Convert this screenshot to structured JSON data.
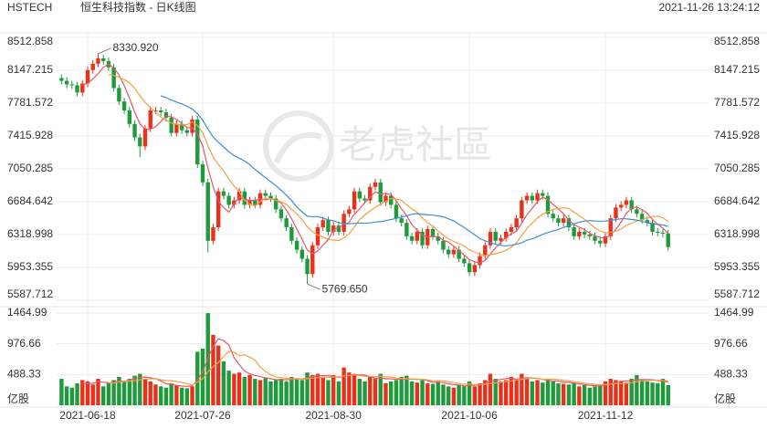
{
  "chart_data": {
    "type": "candlestick",
    "symbol": "HSTECH",
    "title": "恒生科技指数 - 日K线图",
    "timestamp": "2021-11-26 13:24:12",
    "watermark": "老虎社區",
    "colors": {
      "up": "#e8311a",
      "down": "#1f9a3c"
    },
    "grid": true,
    "categories": [
      null,
      null,
      null,
      null,
      null,
      "2021-06-18",
      null,
      null,
      null,
      null,
      null,
      null,
      null,
      null,
      null,
      null,
      null,
      null,
      null,
      null,
      null,
      null,
      null,
      null,
      null,
      null,
      null,
      "2021-07-26",
      null,
      null,
      null,
      null,
      null,
      null,
      null,
      null,
      null,
      null,
      null,
      null,
      null,
      null,
      null,
      null,
      null,
      null,
      null,
      null,
      null,
      null,
      null,
      null,
      "2021-08-30",
      null,
      null,
      null,
      null,
      null,
      null,
      null,
      null,
      null,
      null,
      null,
      null,
      null,
      null,
      null,
      null,
      null,
      null,
      null,
      null,
      null,
      null,
      null,
      null,
      null,
      "2021-10-06",
      null,
      null,
      null,
      null,
      null,
      null,
      null,
      null,
      null,
      null,
      null,
      null,
      null,
      null,
      null,
      null,
      null,
      null,
      null,
      null,
      null,
      null,
      null,
      null,
      null,
      "2021-11-12",
      null,
      null,
      null,
      null,
      null,
      null,
      null,
      null,
      null,
      null,
      null,
      null
    ],
    "open": [
      8060,
      8030,
      7990,
      7980,
      7900,
      8000,
      8150,
      8220,
      8280,
      8250,
      8180,
      7950,
      7800,
      7700,
      7550,
      7400,
      7300,
      7500,
      7700,
      7700,
      7680,
      7620,
      7450,
      7550,
      7480,
      7450,
      7600,
      7100,
      6900,
      6250,
      6400,
      6800,
      6750,
      6650,
      6700,
      6800,
      6650,
      6700,
      6650,
      6780,
      6750,
      6720,
      6600,
      6500,
      6400,
      6250,
      6150,
      6050,
      5880,
      6200,
      6400,
      6480,
      6350,
      6420,
      6350,
      6550,
      6600,
      6800,
      6720,
      6700,
      6850,
      6900,
      6680,
      6750,
      6650,
      6500,
      6450,
      6300,
      6250,
      6350,
      6200,
      6380,
      6300,
      6250,
      6150,
      6100,
      6150,
      6050,
      6000,
      5900,
      5980,
      6080,
      6200,
      6350,
      6250,
      6280,
      6350,
      6400,
      6500,
      6700,
      6750,
      6700,
      6780,
      6750,
      6550,
      6500,
      6450,
      6500,
      6400,
      6300,
      6350,
      6320,
      6300,
      6250,
      6220,
      6300,
      6500,
      6620,
      6650,
      6700,
      6600,
      6550,
      6480,
      6450,
      6350,
      6340,
      6330
    ],
    "high": [
      8100,
      8070,
      8030,
      8020,
      8040,
      8190,
      8260,
      8330.92,
      8320,
      8290,
      8220,
      7990,
      7840,
      7740,
      7590,
      7440,
      7540,
      7740,
      7740,
      7740,
      7720,
      7660,
      7590,
      7590,
      7520,
      7640,
      7640,
      7140,
      6940,
      6440,
      6840,
      6840,
      6790,
      6740,
      6840,
      6840,
      6740,
      6740,
      6820,
      6820,
      6790,
      6760,
      6640,
      6540,
      6440,
      6290,
      6190,
      6090,
      6240,
      6440,
      6520,
      6520,
      6460,
      6460,
      6590,
      6640,
      6840,
      6840,
      6760,
      6890,
      6940,
      6940,
      6790,
      6790,
      6690,
      6540,
      6490,
      6340,
      6390,
      6390,
      6420,
      6420,
      6340,
      6290,
      6190,
      6190,
      6190,
      6090,
      6040,
      6020,
      6120,
      6240,
      6390,
      6390,
      6320,
      6390,
      6440,
      6540,
      6740,
      6790,
      6790,
      6820,
      6820,
      6790,
      6590,
      6540,
      6540,
      6540,
      6440,
      6390,
      6390,
      6360,
      6340,
      6290,
      6340,
      6540,
      6660,
      6690,
      6740,
      6740,
      6640,
      6590,
      6520,
      6490,
      6390,
      6380,
      6370
    ],
    "low": [
      7990,
      7950,
      7940,
      7860,
      7860,
      7960,
      8110,
      8180,
      8210,
      8140,
      7910,
      7760,
      7660,
      7510,
      7360,
      7180,
      7260,
      7460,
      7660,
      7640,
      7580,
      7410,
      7410,
      7440,
      7410,
      7410,
      7060,
      6860,
      6120,
      6210,
      6360,
      6710,
      6610,
      6610,
      6660,
      6610,
      6610,
      6610,
      6610,
      6710,
      6680,
      6560,
      6460,
      6360,
      6210,
      6110,
      6010,
      5769.65,
      5840,
      6160,
      6360,
      6310,
      6310,
      6310,
      6310,
      6510,
      6560,
      6680,
      6660,
      6660,
      6810,
      6640,
      6640,
      6610,
      6460,
      6410,
      6260,
      6210,
      6210,
      6160,
      6160,
      6260,
      6210,
      6110,
      6060,
      6060,
      6010,
      5960,
      5860,
      5860,
      5940,
      6040,
      6160,
      6210,
      6210,
      6240,
      6310,
      6360,
      6460,
      6660,
      6660,
      6660,
      6710,
      6510,
      6460,
      6410,
      6410,
      6360,
      6260,
      6260,
      6280,
      6260,
      6210,
      6180,
      6180,
      6260,
      6460,
      6580,
      6610,
      6560,
      6510,
      6440,
      6410,
      6310,
      6300,
      6290,
      6140
    ],
    "close": [
      8030,
      7990,
      7980,
      7900,
      8000,
      8150,
      8220,
      8280,
      8250,
      8180,
      7950,
      7800,
      7700,
      7550,
      7400,
      7300,
      7500,
      7700,
      7700,
      7680,
      7620,
      7450,
      7550,
      7480,
      7450,
      7600,
      7100,
      6900,
      6250,
      6400,
      6800,
      6750,
      6650,
      6700,
      6800,
      6650,
      6700,
      6650,
      6780,
      6750,
      6720,
      6600,
      6500,
      6400,
      6250,
      6150,
      6050,
      5880,
      6200,
      6400,
      6480,
      6350,
      6420,
      6350,
      6550,
      6600,
      6800,
      6720,
      6700,
      6850,
      6900,
      6680,
      6750,
      6650,
      6500,
      6450,
      6300,
      6250,
      6350,
      6200,
      6380,
      6300,
      6250,
      6150,
      6100,
      6150,
      6050,
      6000,
      5900,
      5980,
      6080,
      6200,
      6350,
      6250,
      6280,
      6350,
      6400,
      6500,
      6700,
      6750,
      6700,
      6780,
      6750,
      6550,
      6500,
      6450,
      6500,
      6400,
      6300,
      6350,
      6320,
      6300,
      6250,
      6220,
      6300,
      6500,
      6620,
      6650,
      6700,
      6600,
      6550,
      6480,
      6450,
      6350,
      6340,
      6330,
      6180
    ],
    "ylim": [
      5587.712,
      8512.858
    ],
    "yticks": [
      5587.712,
      5953.355,
      6318.998,
      6684.642,
      7050.285,
      7415.928,
      7781.572,
      8147.215,
      8512.858
    ],
    "ma_lines": [
      {
        "color": "#e8566a",
        "values": [
          null,
          null,
          null,
          null,
          7980,
          8004,
          8050,
          8110,
          8180,
          8216,
          8176,
          8092,
          7976,
          7836,
          7680,
          7550,
          7490,
          7490,
          7520,
          7576,
          7640,
          7630,
          7600,
          7556,
          7510,
          7506,
          7436,
          7306,
          7060,
          6850,
          6690,
          6620,
          6570,
          6660,
          6740,
          6710,
          6700,
          6700,
          6716,
          6706,
          6720,
          6700,
          6670,
          6594,
          6494,
          6380,
          6270,
          6146,
          6106,
          6136,
          6202,
          6262,
          6370,
          6400,
          6430,
          6454,
          6544,
          6604,
          6674,
          6734,
          6794,
          6770,
          6776,
          6766,
          6696,
          6606,
          6530,
          6430,
          6370,
          6310,
          6296,
          6296,
          6296,
          6256,
          6236,
          6190,
          6140,
          6090,
          6040,
          6016,
          6002,
          6032,
          6102,
          6172,
          6232,
          6286,
          6326,
          6356,
          6446,
          6540,
          6610,
          6686,
          6736,
          6706,
          6656,
          6606,
          6550,
          6480,
          6430,
          6400,
          6374,
          6334,
          6304,
          6288,
          6278,
          6314,
          6378,
          6458,
          6554,
          6614,
          6624,
          6596,
          6556,
          6486,
          6434,
          6390,
          6330
        ]
      },
      {
        "color": "#f4a043",
        "values": [
          null,
          null,
          null,
          null,
          null,
          null,
          null,
          null,
          null,
          8098,
          8090,
          8071,
          8043,
          8008,
          7948,
          7863,
          7791,
          7733,
          7678,
          7628,
          7595,
          7560,
          7545,
          7538,
          7543,
          7573,
          7533,
          7453,
          7308,
          7180,
          7098,
          7028,
          6938,
          6860,
          6795,
          6700,
          6660,
          6635,
          6688,
          6723,
          6715,
          6700,
          6685,
          6655,
          6600,
          6550,
          6485,
          6408,
          6350,
          6315,
          6291,
          6266,
          6258,
          6253,
          6283,
          6328,
          6403,
          6487,
          6537,
          6582,
          6624,
          6657,
          6690,
          6720,
          6715,
          6700,
          6650,
          6603,
          6568,
          6503,
          6451,
          6413,
          6363,
          6313,
          6273,
          6243,
          6218,
          6193,
          6148,
          6126,
          6096,
          6086,
          6096,
          6106,
          6124,
          6144,
          6179,
          6229,
          6309,
          6386,
          6448,
          6506,
          6546,
          6576,
          6598,
          6608,
          6618,
          6608,
          6568,
          6528,
          6490,
          6442,
          6392,
          6359,
          6339,
          6344,
          6356,
          6381,
          6421,
          6446,
          6469,
          6487,
          6507,
          6520,
          6524,
          6507,
          6463
        ]
      },
      {
        "color": "#3b8fd8",
        "values": [
          null,
          null,
          null,
          null,
          null,
          null,
          null,
          null,
          null,
          null,
          null,
          null,
          null,
          null,
          null,
          null,
          null,
          null,
          null,
          7863,
          7843,
          7816,
          7794,
          7773,
          7746,
          7718,
          7662,
          7593,
          7493,
          7404,
          7347,
          7294,
          7242,
          7199,
          7169,
          7137,
          7097,
          7044,
          6998,
          6952,
          6907,
          6864,
          6812,
          6758,
          6698,
          6625,
          6573,
          6522,
          6519,
          6519,
          6503,
          6483,
          6472,
          6454,
          6442,
          6439,
          6444,
          6448,
          6444,
          6449,
          6458,
          6462,
          6474,
          6487,
          6499,
          6514,
          6527,
          6545,
          6553,
          6543,
          6538,
          6535,
          6527,
          6517,
          6494,
          6472,
          6434,
          6398,
          6358,
          6315,
          6274,
          6250,
          6230,
          6210,
          6199,
          6194,
          6199,
          6211,
          6229,
          6256,
          6272,
          6296,
          6321,
          6341,
          6361,
          6376,
          6399,
          6419,
          6439,
          6457,
          6469,
          6474,
          6469,
          6468,
          6469,
          6476,
          6487,
          6495,
          6495,
          6487,
          6480,
          6465,
          6450,
          6440,
          6432,
          6426,
          6410
        ]
      }
    ],
    "annotations": [
      {
        "label": "8330.920",
        "value": 8330.92
      },
      {
        "label": "5769.650",
        "value": 5769.65
      }
    ],
    "volume": {
      "values": [
        420,
        300,
        280,
        350,
        400,
        380,
        330,
        420,
        300,
        360,
        400,
        450,
        380,
        420,
        470,
        500,
        420,
        380,
        330,
        300,
        280,
        350,
        320,
        280,
        270,
        300,
        850,
        900,
        1464.99,
        1120,
        950,
        700,
        550,
        500,
        520,
        450,
        480,
        420,
        400,
        430,
        380,
        400,
        420,
        380,
        450,
        430,
        400,
        520,
        480,
        500,
        450,
        400,
        480,
        380,
        600,
        520,
        480,
        420,
        380,
        450,
        420,
        500,
        350,
        380,
        400,
        450,
        470,
        380,
        360,
        400,
        350,
        340,
        380,
        330,
        300,
        280,
        320,
        300,
        380,
        300,
        350,
        400,
        500,
        420,
        380,
        400,
        450,
        420,
        500,
        420,
        380,
        400,
        360,
        420,
        380,
        350,
        340,
        330,
        360,
        300,
        320,
        280,
        300,
        330,
        380,
        420,
        400,
        380,
        360,
        420,
        480,
        400,
        380,
        360,
        350,
        420,
        320
      ],
      "ylim": [
        0,
        1464.99
      ],
      "yticks": [
        {
          "value": 0,
          "label": "亿股"
        },
        488.33,
        976.66,
        1464.99
      ],
      "ma_lines": [
        {
          "color": "#e8566a",
          "values": [
            null,
            null,
            null,
            null,
            350,
            342,
            348,
            376,
            366,
            358,
            362,
            386,
            378,
            402,
            424,
            444,
            448,
            438,
            420,
            386,
            342,
            332,
            316,
            306,
            300,
            304,
            404,
            524,
            757,
            927,
            1057,
            1027,
            957,
            757,
            644,
            544,
            500,
            474,
            454,
            436,
            422,
            406,
            406,
            406,
            406,
            416,
            416,
            436,
            456,
            470,
            470,
            470,
            462,
            442,
            462,
            476,
            492,
            480,
            480,
            454,
            430,
            434,
            420,
            420,
            410,
            416,
            410,
            416,
            412,
            412,
            392,
            366,
            366,
            360,
            340,
            326,
            322,
            306,
            316,
            316,
            330,
            346,
            386,
            394,
            410,
            424,
            430,
            414,
            430,
            438,
            434,
            428,
            412,
            396,
            388,
            382,
            370,
            364,
            352,
            340,
            330,
            318,
            312,
            306,
            322,
            342,
            366,
            382,
            388,
            392,
            408,
            408,
            408,
            404,
            394,
            382,
            370
          ]
        },
        {
          "color": "#f4a043",
          "values": [
            null,
            null,
            null,
            null,
            null,
            null,
            null,
            null,
            null,
            354,
            352,
            367,
            377,
            384,
            391,
            403,
            417,
            420,
            422,
            405,
            393,
            390,
            377,
            363,
            343,
            323,
            368,
            420,
            531,
            614,
            681,
            776,
            857,
            842,
            786,
            801,
            764,
            716,
            606,
            540,
            483,
            453,
            440,
            430,
            421,
            419,
            411,
            421,
            431,
            438,
            443,
            443,
            449,
            449,
            466,
            473,
            481,
            471,
            461,
            458,
            453,
            463,
            450,
            450,
            432,
            423,
            422,
            418,
            416,
            411,
            404,
            388,
            391,
            386,
            376,
            359,
            344,
            336,
            338,
            328,
            328,
            334,
            346,
            355,
            363,
            377,
            388,
            400,
            412,
            424,
            429,
            429,
            413,
            413,
            413,
            408,
            399,
            388,
            374,
            364,
            350,
            341,
            332,
            323,
            331,
            336,
            342,
            344,
            347,
            357,
            375,
            387,
            395,
            396,
            401,
            395,
            389
          ]
        }
      ]
    }
  }
}
